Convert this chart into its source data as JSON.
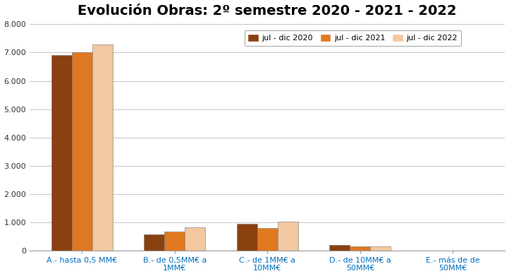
{
  "title": "Evolución Obras: 2º semestre 2020 - 2021 - 2022",
  "categories": [
    "A.- hasta 0,5 MM€",
    "B.- de 0,5MM€ a\n1MM€",
    "C.- de 1MM€ a\n10MM€",
    "D.- de 10MM€ a\n50MM€",
    "E.- más de de\n50MM€"
  ],
  "series": [
    {
      "label": "jul - dic 2020",
      "values": [
        6900,
        560,
        950,
        190,
        0
      ],
      "color": "#8B4010"
    },
    {
      "label": "jul - dic 2021",
      "values": [
        7020,
        680,
        800,
        150,
        0
      ],
      "color": "#E07820"
    },
    {
      "label": "jul - dic 2022",
      "values": [
        7280,
        820,
        1020,
        140,
        0
      ],
      "color": "#F2C8A0"
    }
  ],
  "ylim": [
    0,
    8000
  ],
  "yticks": [
    0,
    1000,
    2000,
    3000,
    4000,
    5000,
    6000,
    7000,
    8000
  ],
  "ytick_labels": [
    "0",
    "1.000",
    "2.000",
    "3.000",
    "4.000",
    "5.000",
    "6.000",
    "7.000",
    "8.000"
  ],
  "background_color": "#FFFFFF",
  "grid_color": "#BBBBBB",
  "title_fontsize": 14,
  "bar_edge_color": "#777777",
  "xtick_color": "#0070C0",
  "legend_ncol": 3,
  "bar_width": 0.22
}
